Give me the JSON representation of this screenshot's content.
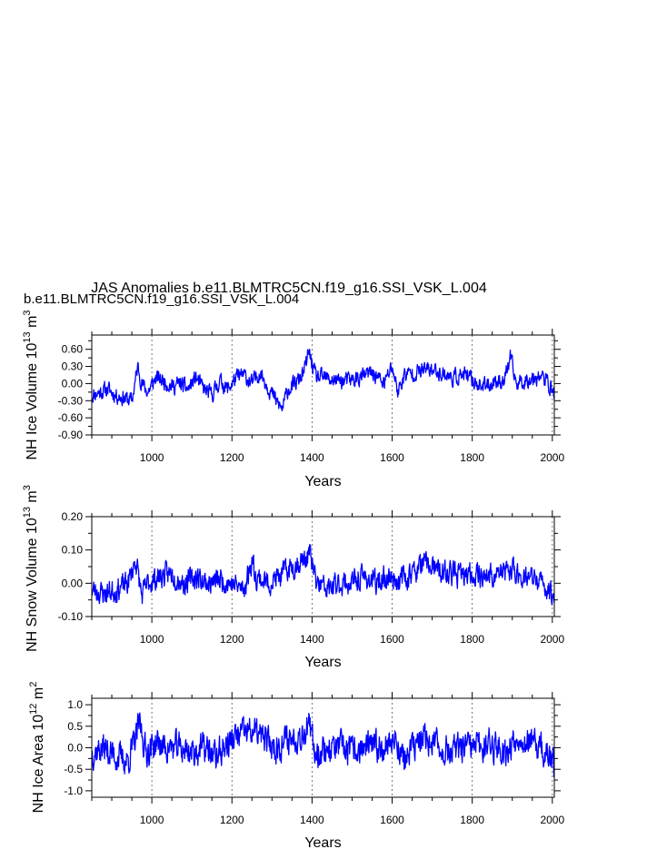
{
  "figure": {
    "title": "JAS Anomalies b.e11.BLMTRC5CN.f19_g16.SSI_VSK_L.004",
    "subtitle": "b.e11.BLMTRC5CN.f19_g16.SSI_VSK_L.004",
    "subtitle_color": "#0000ff",
    "line_color": "#0000ff"
  },
  "chart_data": [
    {
      "type": "line",
      "ylabel": "NH Ice Volume 10",
      "ylabel_sup1": "13",
      "ylabel_unit": " m",
      "ylabel_sup2": "3",
      "xlabel": "Years",
      "xlim": [
        850,
        2005
      ],
      "ylim": [
        -0.9,
        0.85
      ],
      "xticks": [
        1000,
        1200,
        1400,
        1600,
        1800,
        2000
      ],
      "xtick_labels": [
        "1000",
        "1200",
        "1400",
        "1600",
        "1800",
        "2000"
      ],
      "yticks": [
        -0.9,
        -0.6,
        -0.3,
        0.0,
        0.3,
        0.6
      ],
      "ytick_labels": [
        "-0.90",
        "-0.60",
        "-0.30",
        "0.00",
        "0.30",
        "0.60"
      ],
      "vgrid_years": [
        1000,
        1200,
        1400,
        1600,
        1800,
        2000
      ],
      "anchors": {
        "x": [
          850,
          870,
          890,
          910,
          930,
          950,
          965,
          975,
          990,
          1010,
          1030,
          1050,
          1070,
          1090,
          1110,
          1130,
          1150,
          1170,
          1190,
          1210,
          1230,
          1250,
          1270,
          1290,
          1310,
          1325,
          1340,
          1360,
          1380,
          1392,
          1410,
          1430,
          1460,
          1490,
          1520,
          1550,
          1580,
          1600,
          1615,
          1630,
          1660,
          1690,
          1720,
          1750,
          1780,
          1800,
          1830,
          1860,
          1880,
          1895,
          1910,
          1930,
          1950,
          1970,
          1990,
          2005
        ],
        "y": [
          -0.2,
          -0.15,
          -0.1,
          -0.2,
          -0.25,
          -0.3,
          0.3,
          0.0,
          -0.15,
          0.1,
          0.05,
          -0.05,
          0.0,
          -0.1,
          0.1,
          -0.1,
          -0.2,
          0.05,
          -0.1,
          0.1,
          0.15,
          0.0,
          0.2,
          -0.05,
          -0.3,
          -0.45,
          -0.1,
          0.0,
          0.2,
          0.55,
          0.1,
          0.1,
          0.05,
          0.05,
          0.1,
          0.2,
          0.0,
          0.3,
          -0.15,
          0.15,
          0.2,
          0.25,
          0.2,
          0.1,
          0.15,
          0.05,
          -0.05,
          0.05,
          0.05,
          0.45,
          0.0,
          0.05,
          0.1,
          0.15,
          0.0,
          -0.2
        ],
        "noise": 0.12,
        "seed": 11
      }
    },
    {
      "type": "line",
      "ylabel": "NH Snow Volume 10",
      "ylabel_sup1": "13",
      "ylabel_unit": " m",
      "ylabel_sup2": "3",
      "xlabel": "Years",
      "xlim": [
        850,
        2005
      ],
      "ylim": [
        -0.1,
        0.2
      ],
      "xticks": [
        1000,
        1200,
        1400,
        1600,
        1800,
        2000
      ],
      "xtick_labels": [
        "1000",
        "1200",
        "1400",
        "1600",
        "1800",
        "2000"
      ],
      "yticks": [
        -0.1,
        0.0,
        0.1,
        0.2
      ],
      "ytick_labels": [
        "-0.10",
        "0.00",
        "0.10",
        "0.20"
      ],
      "vgrid_years": [
        1000,
        1200,
        1400,
        1600,
        1800,
        2000
      ],
      "anchors": {
        "x": [
          850,
          880,
          910,
          940,
          960,
          975,
          990,
          1020,
          1050,
          1080,
          1110,
          1140,
          1170,
          1200,
          1230,
          1250,
          1260,
          1290,
          1320,
          1350,
          1380,
          1395,
          1410,
          1440,
          1470,
          1500,
          1530,
          1560,
          1590,
          1620,
          1650,
          1680,
          1700,
          1720,
          1750,
          1780,
          1810,
          1840,
          1870,
          1900,
          1930,
          1960,
          1990,
          2005
        ],
        "y": [
          -0.02,
          -0.03,
          -0.02,
          0.0,
          0.07,
          -0.04,
          0.0,
          0.02,
          0.03,
          0.0,
          0.02,
          0.0,
          0.01,
          0.0,
          -0.02,
          0.07,
          0.02,
          0.0,
          0.02,
          0.05,
          0.07,
          0.09,
          0.0,
          -0.02,
          0.0,
          0.0,
          0.02,
          0.0,
          0.02,
          0.01,
          0.03,
          0.06,
          0.05,
          0.03,
          0.03,
          0.02,
          0.03,
          0.02,
          0.03,
          0.04,
          0.02,
          0.01,
          -0.02,
          -0.04
        ],
        "noise": 0.03,
        "seed": 23
      }
    },
    {
      "type": "line",
      "ylabel": "NH Ice Area 10",
      "ylabel_sup1": "12",
      "ylabel_unit": " m",
      "ylabel_sup2": "2",
      "xlabel": "Years",
      "xlim": [
        850,
        2005
      ],
      "ylim": [
        -1.15,
        1.15
      ],
      "xticks": [
        1000,
        1200,
        1400,
        1600,
        1800,
        2000
      ],
      "xtick_labels": [
        "1000",
        "1200",
        "1400",
        "1600",
        "1800",
        "2000"
      ],
      "yticks": [
        -1.0,
        -0.5,
        0.0,
        0.5,
        1.0
      ],
      "ytick_labels": [
        "-1.0",
        "-0.5",
        "0.0",
        "0.5",
        "1.0"
      ],
      "vgrid_years": [
        1000,
        1200,
        1400,
        1600,
        1800,
        2000
      ],
      "anchors": {
        "x": [
          850,
          880,
          910,
          940,
          960,
          970,
          985,
          1010,
          1040,
          1070,
          1100,
          1130,
          1160,
          1190,
          1220,
          1250,
          1280,
          1310,
          1340,
          1370,
          1390,
          1410,
          1440,
          1470,
          1500,
          1530,
          1560,
          1590,
          1610,
          1630,
          1660,
          1690,
          1720,
          1750,
          1780,
          1810,
          1840,
          1870,
          1890,
          1910,
          1940,
          1970,
          2005
        ],
        "y": [
          -0.1,
          0.0,
          -0.2,
          -0.3,
          0.2,
          0.6,
          -0.1,
          0.1,
          0.0,
          0.0,
          -0.1,
          0.0,
          -0.2,
          0.1,
          0.3,
          0.4,
          0.2,
          0.0,
          0.2,
          0.3,
          0.5,
          -0.1,
          0.0,
          0.0,
          -0.1,
          0.0,
          0.0,
          0.1,
          0.2,
          -0.3,
          0.1,
          0.2,
          0.0,
          -0.1,
          0.0,
          0.0,
          0.1,
          0.0,
          -0.1,
          0.3,
          0.1,
          0.0,
          -0.4
        ],
        "noise": 0.3,
        "seed": 37
      }
    }
  ]
}
